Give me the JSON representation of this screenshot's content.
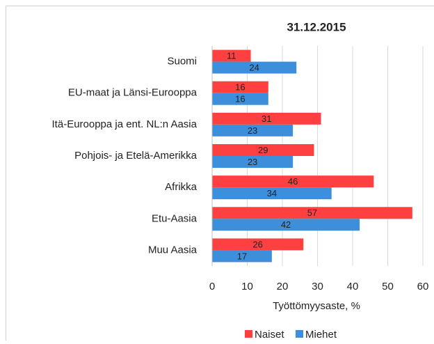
{
  "chart_data": {
    "type": "bar",
    "orientation": "horizontal",
    "title": "31.12.2015",
    "xlabel": "Työttömyysaste, %",
    "categories": [
      "Suomi",
      "EU-maat ja Länsi-Eurooppa",
      "Itä-Eurooppa ja ent. NL:n Aasia",
      "Pohjois- ja Etelä-Amerikka",
      "Afrikka",
      "Etu-Aasia",
      "Muu Aasia"
    ],
    "series": [
      {
        "name": "Naiset",
        "color": "#ff4040",
        "values": [
          11,
          16,
          31,
          29,
          46,
          57,
          26
        ]
      },
      {
        "name": "Miehet",
        "color": "#3d8fdc",
        "values": [
          24,
          16,
          23,
          23,
          34,
          42,
          17
        ]
      }
    ],
    "xlim": [
      0,
      60
    ],
    "xticks": [
      0,
      10,
      20,
      30,
      40,
      50,
      60
    ],
    "grid": true,
    "legend": "bottom"
  }
}
